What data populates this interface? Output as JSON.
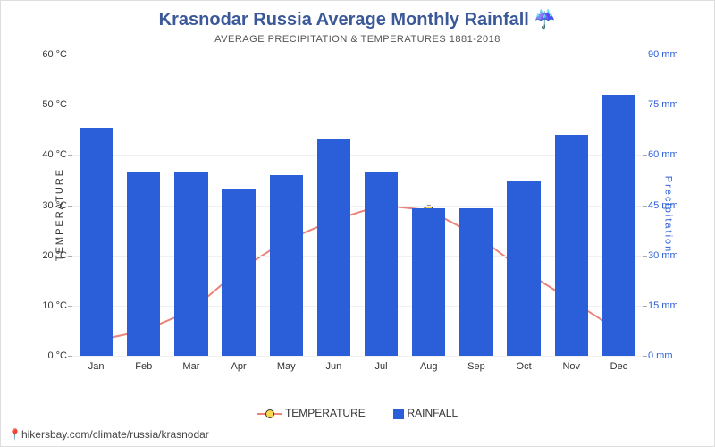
{
  "header": {
    "title": "Krasnodar Russia Average Monthly Rainfall ☔",
    "subtitle": "AVERAGE PRECIPITATION & TEMPERATURES 1881-2018"
  },
  "chart": {
    "type": "combo-bar-line",
    "categories": [
      "Jan",
      "Feb",
      "Mar",
      "Apr",
      "May",
      "Jun",
      "Jul",
      "Aug",
      "Sep",
      "Oct",
      "Nov",
      "Dec"
    ],
    "bars": {
      "label": "RAINFALL",
      "values_mm": [
        68,
        55,
        55,
        50,
        54,
        65,
        55,
        44,
        44,
        52,
        66,
        78
      ],
      "color": "#2b5fd9",
      "bar_width_ratio": 0.7
    },
    "line": {
      "label": "TEMPERATURE",
      "values_c": [
        3,
        5,
        9,
        17,
        23,
        27,
        30,
        29,
        24,
        17,
        11,
        5
      ],
      "line_color": "#e8847a",
      "line_width": 2,
      "marker_fill": "#ffd84d",
      "marker_stroke": "#333333",
      "marker_radius": 5
    },
    "left_axis": {
      "title": "TEMPERATURE",
      "min": 0,
      "max": 60,
      "step": 10,
      "unit": "°C",
      "color": "#333333"
    },
    "right_axis": {
      "title": "Precipitation",
      "min": 0,
      "max": 90,
      "step": 15,
      "unit": "mm",
      "color": "#2b5fd9"
    },
    "background_color": "#ffffff",
    "grid_color": "#f0f0f0"
  },
  "legend": {
    "temperature": "TEMPERATURE",
    "rainfall": "RAINFALL"
  },
  "footer": {
    "text": "hikersbay.com/climate/russia/krasnodar"
  }
}
